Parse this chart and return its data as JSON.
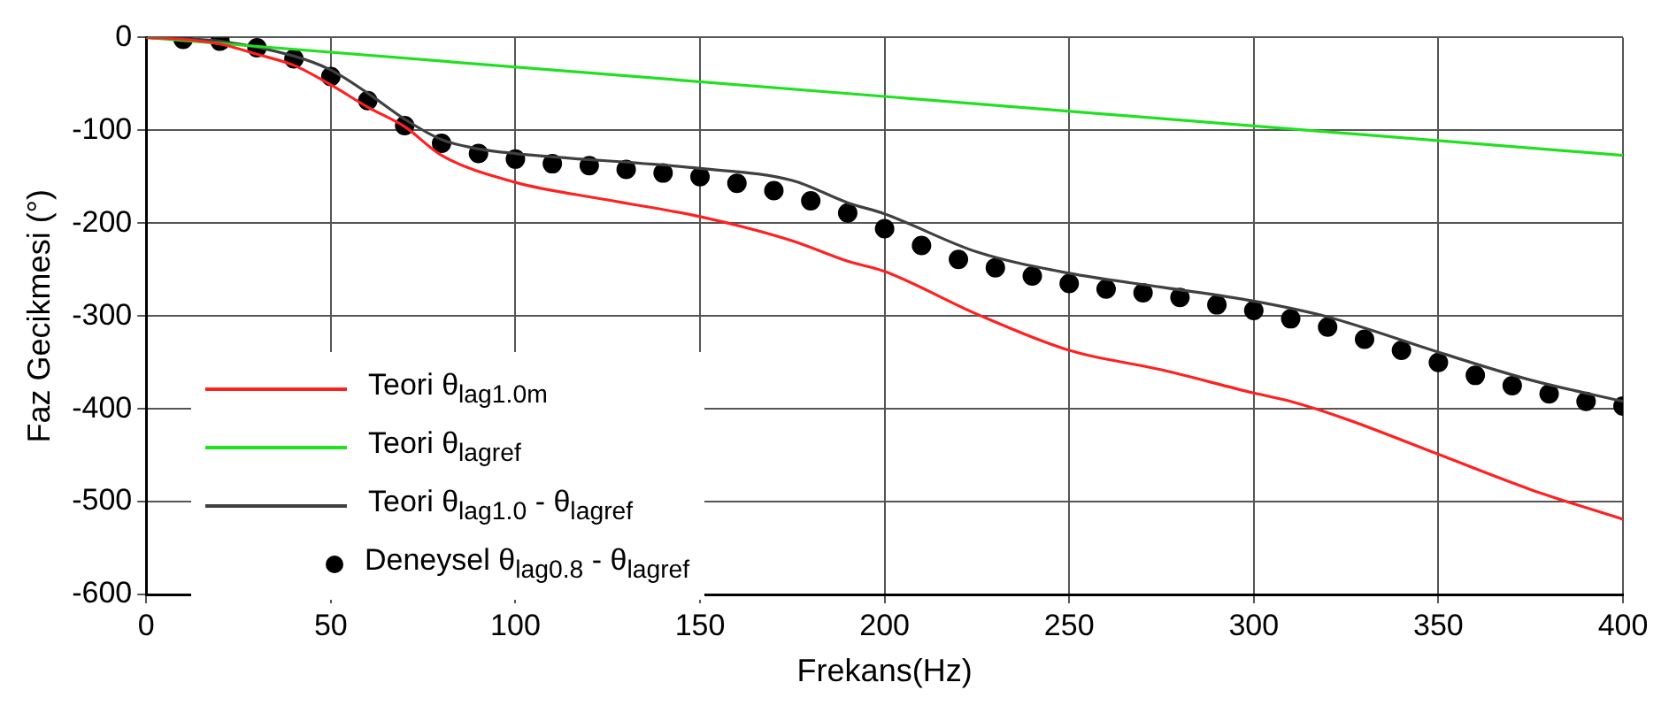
{
  "chart_data": {
    "type": "line",
    "xlabel": "Frekans(Hz)",
    "ylabel": "Faz Gecikmesi (°)",
    "xlim": [
      0,
      400
    ],
    "xticks": [
      0,
      50,
      100,
      150,
      200,
      250,
      300,
      350,
      400
    ],
    "ylim": [
      -600,
      0
    ],
    "yticks": [
      -600,
      -500,
      -400,
      -300,
      -200,
      -100,
      0
    ],
    "grid": true,
    "legend": "bottom left",
    "series": [
      {
        "name": "Teori θ$_{lag1.0m}$",
        "type": "line",
        "color": "#ff2020",
        "marker": "none",
        "x": [
          0,
          10,
          20,
          30,
          40,
          50,
          60,
          70,
          80,
          100,
          125,
          150,
          175,
          190,
          200,
          225,
          250,
          275,
          300,
          310,
          325,
          350,
          375,
          400
        ],
        "values": [
          0,
          -2,
          -7,
          -18,
          -30,
          -51,
          -75,
          -96,
          -127,
          -156,
          -175,
          -193,
          -219,
          -241,
          -252,
          -298,
          -337,
          -358,
          -383,
          -392,
          -411,
          -449,
          -487,
          -519
        ]
      },
      {
        "name": "Teori θ$_{lagref}$",
        "type": "line",
        "color": "#20e020",
        "marker": "none",
        "x": [
          0,
          400
        ],
        "values": [
          0,
          -127
        ]
      },
      {
        "name": "Teori θ$_{lag1.0}$ - θ$_{lagref}$",
        "type": "line",
        "color": "#404040",
        "marker": "none",
        "x": [
          0,
          20,
          40,
          50,
          60,
          70,
          80,
          90,
          100,
          150,
          175,
          190,
          200,
          225,
          250,
          275,
          300,
          320,
          350,
          375,
          400
        ],
        "values": [
          0,
          -4,
          -20,
          -35,
          -60,
          -88,
          -110,
          -120,
          -125,
          -141,
          -154,
          -178,
          -190,
          -231,
          -254,
          -269,
          -284,
          -301,
          -339,
          -369,
          -392
        ]
      },
      {
        "name": "Deneysel θ$_{lag0.8}$ - θ$_{lagref}$",
        "type": "scatter",
        "color": "#000000",
        "marker": "circle",
        "x": [
          10,
          20,
          30,
          40,
          50,
          60,
          70,
          80,
          90,
          100,
          110,
          120,
          130,
          140,
          150,
          160,
          170,
          180,
          190,
          200,
          210,
          220,
          230,
          240,
          250,
          260,
          270,
          280,
          290,
          300,
          310,
          320,
          330,
          340,
          350,
          360,
          370,
          380,
          390,
          400
        ],
        "values": [
          -2,
          -4,
          -11,
          -23,
          -42,
          -68,
          -95,
          -114,
          -125,
          -131,
          -136,
          -138,
          -142,
          -146,
          -150,
          -157,
          -165,
          -176,
          -189,
          -206,
          -224,
          -239,
          -248,
          -257,
          -265,
          -271,
          -275,
          -280,
          -288,
          -294,
          -303,
          -312,
          -325,
          -337,
          -350,
          -364,
          -375,
          -384,
          -392,
          -397
        ]
      }
    ]
  }
}
